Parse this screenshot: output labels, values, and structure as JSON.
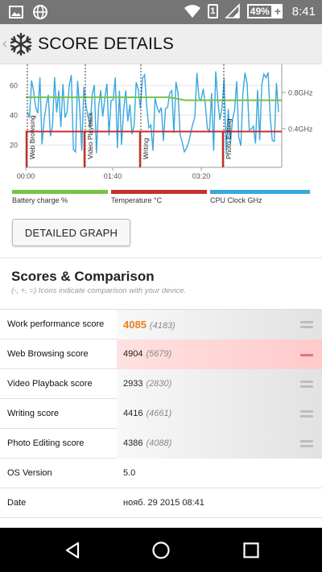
{
  "status_bar": {
    "battery_percent": "49%",
    "battery_plus": "+",
    "sim_label": "1",
    "time": "8:41",
    "icons": [
      "image-icon",
      "globe-icon",
      "wifi-icon",
      "sim-icon",
      "signal-icon",
      "battery-icon"
    ]
  },
  "app_bar": {
    "title": "SCORE DETAILS",
    "icon": "snowflake-icon"
  },
  "graph": {
    "y_ticks": [
      "60",
      "40",
      "20"
    ],
    "right_ticks": [
      "0.8GHz",
      "0.4GHz"
    ],
    "x_ticks": [
      "00:00",
      "01:40",
      "03:20"
    ],
    "section_labels": [
      "Web Browsing",
      "Video Playback",
      "Writing",
      "Photo Editing"
    ],
    "colors": {
      "battery": "#74c445",
      "temperature": "#c62f2f",
      "cpu": "#3aa7e0",
      "marker": "#000000"
    }
  },
  "legend": [
    {
      "label": "Battery charge %",
      "color": "#74c445"
    },
    {
      "label": "Temperature °C",
      "color": "#c62f2f"
    },
    {
      "label": "CPU Clock GHz",
      "color": "#3aa7e0"
    }
  ],
  "detailed_button": "DETAILED GRAPH",
  "scores": {
    "title": "Scores & Comparison",
    "subtitle": "(-, +, =) Icons indicate comparison with your device.",
    "rows": [
      {
        "name": "Work performance score",
        "value": "4085",
        "ref": "(4183)",
        "indicator": "equal"
      },
      {
        "name": "Web Browsing score",
        "value": "4904",
        "ref": "(5679)",
        "indicator": "minus"
      },
      {
        "name": "Video Playback score",
        "value": "2933",
        "ref": "(2830)",
        "indicator": "equal"
      },
      {
        "name": "Writing score",
        "value": "4416",
        "ref": "(4661)",
        "indicator": "equal"
      },
      {
        "name": "Photo Editing score",
        "value": "4386",
        "ref": "(4088)",
        "indicator": "equal"
      },
      {
        "name": "OS Version",
        "value": "5.0"
      },
      {
        "name": "Date",
        "value": "нояб. 29 2015 08:41"
      }
    ]
  },
  "nav": [
    "back-icon",
    "home-icon",
    "recents-icon"
  ]
}
